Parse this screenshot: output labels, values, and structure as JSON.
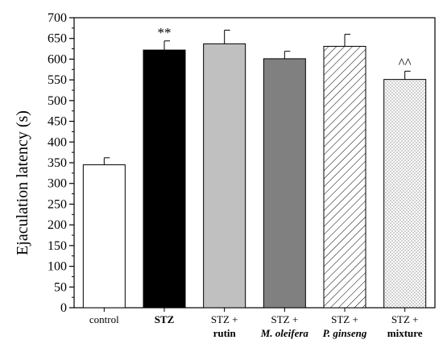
{
  "chart_data": {
    "type": "bar",
    "ylabel": "Ejaculation latency (s)",
    "xlabel": "",
    "ylim": [
      0,
      700
    ],
    "yticks": [
      0,
      50,
      100,
      150,
      200,
      250,
      300,
      350,
      400,
      450,
      500,
      550,
      600,
      650,
      700
    ],
    "categories": [
      {
        "line1": "control",
        "line2": ""
      },
      {
        "line1": "STZ",
        "line2": ""
      },
      {
        "line1": "STZ +",
        "line2": "rutin"
      },
      {
        "line1": "STZ +",
        "line2": "M. oleifera"
      },
      {
        "line1": "STZ +",
        "line2": "P. ginseng"
      },
      {
        "line1": "STZ +",
        "line2": "mixture"
      }
    ],
    "values": [
      345,
      622,
      637,
      601,
      631,
      551
    ],
    "errors": [
      17,
      22,
      33,
      18,
      29,
      20
    ],
    "annotations": [
      "",
      "**",
      "",
      "",
      "",
      "^^"
    ],
    "bar_styles": [
      "white",
      "black",
      "lightgray",
      "darkgray",
      "hatch",
      "dots"
    ],
    "colors": {
      "black": "#000000",
      "lightgray": "#c0c0c0",
      "darkgray": "#808080",
      "white": "#ffffff"
    },
    "grid": false
  }
}
